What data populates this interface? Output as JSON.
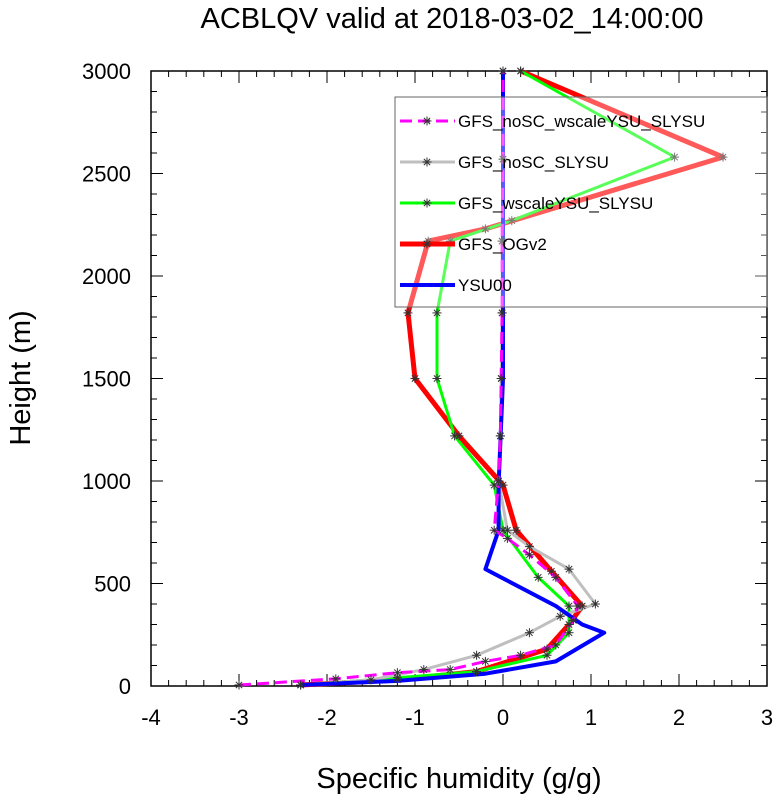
{
  "chart_data": {
    "type": "line",
    "title": "ACBLQV valid at 2018-03-02_14:00:00",
    "xlabel": "Specific humidity (g/g)",
    "ylabel": "Height (m)",
    "xlim": [
      -4,
      3
    ],
    "ylim": [
      0,
      3000
    ],
    "xticks": [
      -4,
      -3,
      -2,
      -1,
      0,
      1,
      2,
      3
    ],
    "xtick_labels": [
      "-4",
      "-3",
      "-2",
      "-1",
      "0",
      "1",
      "2",
      "3"
    ],
    "yticks": [
      0,
      500,
      1000,
      1500,
      2000,
      2500,
      3000
    ],
    "ytick_labels": [
      "0",
      "500",
      "1000",
      "1500",
      "2000",
      "2500",
      "3000"
    ],
    "grid": false,
    "legend_position": "top-right",
    "series": [
      {
        "name": "GFS_noSC_wscaleYSU_SLYSU",
        "color": "#ff00ff",
        "dash": "dashed",
        "width": 3,
        "marker": "asterisk",
        "points": [
          [
            -3.0,
            5
          ],
          [
            -1.9,
            35
          ],
          [
            -1.2,
            65
          ],
          [
            -0.6,
            80
          ],
          [
            -0.2,
            120
          ],
          [
            0.2,
            150
          ],
          [
            0.6,
            200
          ],
          [
            0.8,
            320
          ],
          [
            0.85,
            390
          ],
          [
            0.6,
            530
          ],
          [
            0.3,
            640
          ],
          [
            0.05,
            720
          ],
          [
            -0.1,
            760
          ],
          [
            -0.05,
            1000
          ],
          [
            -0.03,
            1220
          ],
          [
            -0.02,
            1500
          ],
          [
            -0.01,
            1820
          ],
          [
            -0.01,
            2170
          ],
          [
            0.0,
            2570
          ],
          [
            0.0,
            3000
          ]
        ]
      },
      {
        "name": "GFS_noSC_SLYSU",
        "color": "#bfbfbf",
        "dash": "solid",
        "width": 3,
        "marker": "asterisk",
        "points": [
          [
            -2.3,
            5
          ],
          [
            -1.5,
            30
          ],
          [
            -0.9,
            80
          ],
          [
            -0.3,
            150
          ],
          [
            0.3,
            260
          ],
          [
            0.65,
            340
          ],
          [
            1.05,
            400
          ],
          [
            0.75,
            570
          ],
          [
            0.3,
            680
          ],
          [
            0.05,
            760
          ],
          [
            -0.05,
            1000
          ],
          [
            -0.03,
            1220
          ],
          [
            -0.02,
            1500
          ],
          [
            -0.01,
            1820
          ],
          [
            -0.01,
            2170
          ],
          [
            0.0,
            2570
          ],
          [
            0.0,
            3000
          ]
        ]
      },
      {
        "name": "GFS_wscaleYSU_SLYSU",
        "color": "#00ff00",
        "dash": "solid",
        "width": 3,
        "marker": "asterisk",
        "points": [
          [
            -2.3,
            5
          ],
          [
            -1.2,
            40
          ],
          [
            -0.3,
            70
          ],
          [
            0.5,
            150
          ],
          [
            0.75,
            260
          ],
          [
            0.75,
            390
          ],
          [
            0.4,
            530
          ],
          [
            0.0,
            760
          ],
          [
            -0.1,
            980
          ],
          [
            -0.55,
            1220
          ],
          [
            -0.75,
            1500
          ],
          [
            -0.75,
            1820
          ],
          [
            -0.6,
            2170
          ],
          [
            0.1,
            2270
          ],
          [
            1.95,
            2580
          ],
          [
            0.2,
            3000
          ]
        ]
      },
      {
        "name": "GFS_OGv2",
        "color": "#ff0000",
        "dash": "solid",
        "width": 5,
        "marker": "asterisk",
        "points": [
          [
            -2.3,
            5
          ],
          [
            -1.2,
            30
          ],
          [
            -0.3,
            70
          ],
          [
            0.5,
            180
          ],
          [
            0.75,
            300
          ],
          [
            0.9,
            390
          ],
          [
            0.55,
            560
          ],
          [
            0.15,
            760
          ],
          [
            0.0,
            980
          ],
          [
            -0.5,
            1220
          ],
          [
            -1.0,
            1500
          ],
          [
            -1.08,
            1820
          ],
          [
            -0.85,
            2170
          ],
          [
            -0.2,
            2230
          ],
          [
            2.5,
            2580
          ],
          [
            0.2,
            3000
          ]
        ]
      },
      {
        "name": "YSU00",
        "color": "#0000ff",
        "dash": "solid",
        "width": 4,
        "marker": "none",
        "points": [
          [
            -2.3,
            5
          ],
          [
            -1.2,
            25
          ],
          [
            -0.2,
            60
          ],
          [
            0.6,
            120
          ],
          [
            1.15,
            260
          ],
          [
            0.9,
            300
          ],
          [
            0.6,
            390
          ],
          [
            -0.2,
            570
          ],
          [
            -0.05,
            760
          ],
          [
            -0.05,
            980
          ],
          [
            0.0,
            1500
          ],
          [
            0.0,
            2000
          ],
          [
            0.0,
            2570
          ],
          [
            0.0,
            3000
          ]
        ]
      }
    ]
  }
}
